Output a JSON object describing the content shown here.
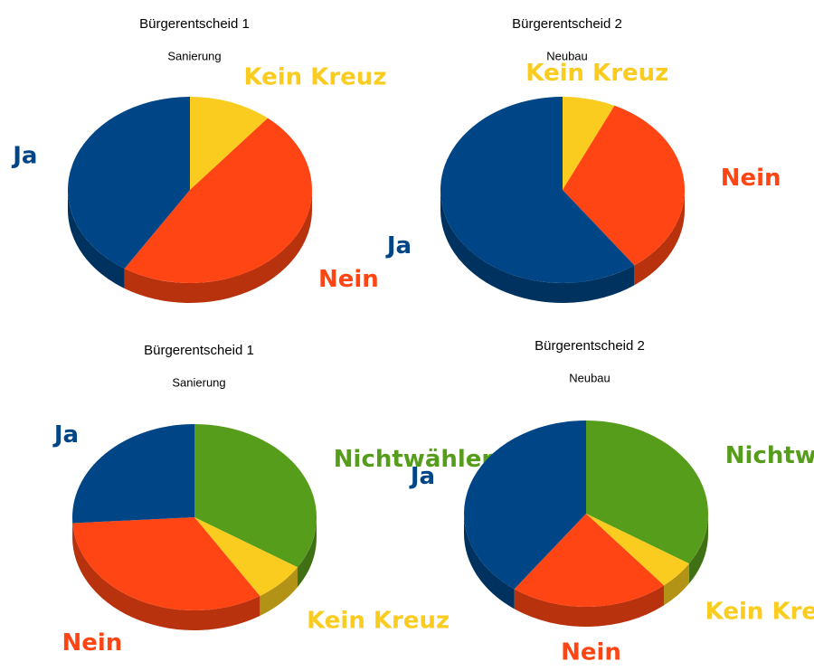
{
  "chart_data": [
    {
      "type": "pie",
      "title": "Bürgerentscheid 1",
      "subtitle": "Sanierung",
      "categories": [
        "Kein Kreuz",
        "Nein",
        "Ja"
      ],
      "values": [
        11,
        48,
        41
      ],
      "colors": [
        "#f9cc1f",
        "#ff4514",
        "#004586"
      ]
    },
    {
      "type": "pie",
      "title": "Bürgerentscheid 2",
      "subtitle": "Neubau",
      "categories": [
        "Kein Kreuz",
        "Nein",
        "Ja"
      ],
      "values": [
        7,
        33,
        60
      ],
      "colors": [
        "#f9cc1f",
        "#ff4514",
        "#004586"
      ]
    },
    {
      "type": "pie",
      "title": "Bürgerentscheid 1",
      "subtitle": "Sanierung",
      "categories": [
        "Nichtwähler",
        "Kein Kreuz",
        "Nein",
        "Ja"
      ],
      "values": [
        34,
        7,
        33,
        26
      ],
      "colors": [
        "#579d1c",
        "#f9cc1f",
        "#ff4514",
        "#004586"
      ]
    },
    {
      "type": "pie",
      "title": "Bürgerentscheid 2",
      "subtitle": "Neubau",
      "categories": [
        "Nichtwähler",
        "Kein Kreuz",
        "Nein",
        "Ja"
      ],
      "values": [
        34,
        5,
        21,
        40
      ],
      "colors": [
        "#579d1c",
        "#f9cc1f",
        "#ff4514",
        "#004586"
      ]
    }
  ]
}
